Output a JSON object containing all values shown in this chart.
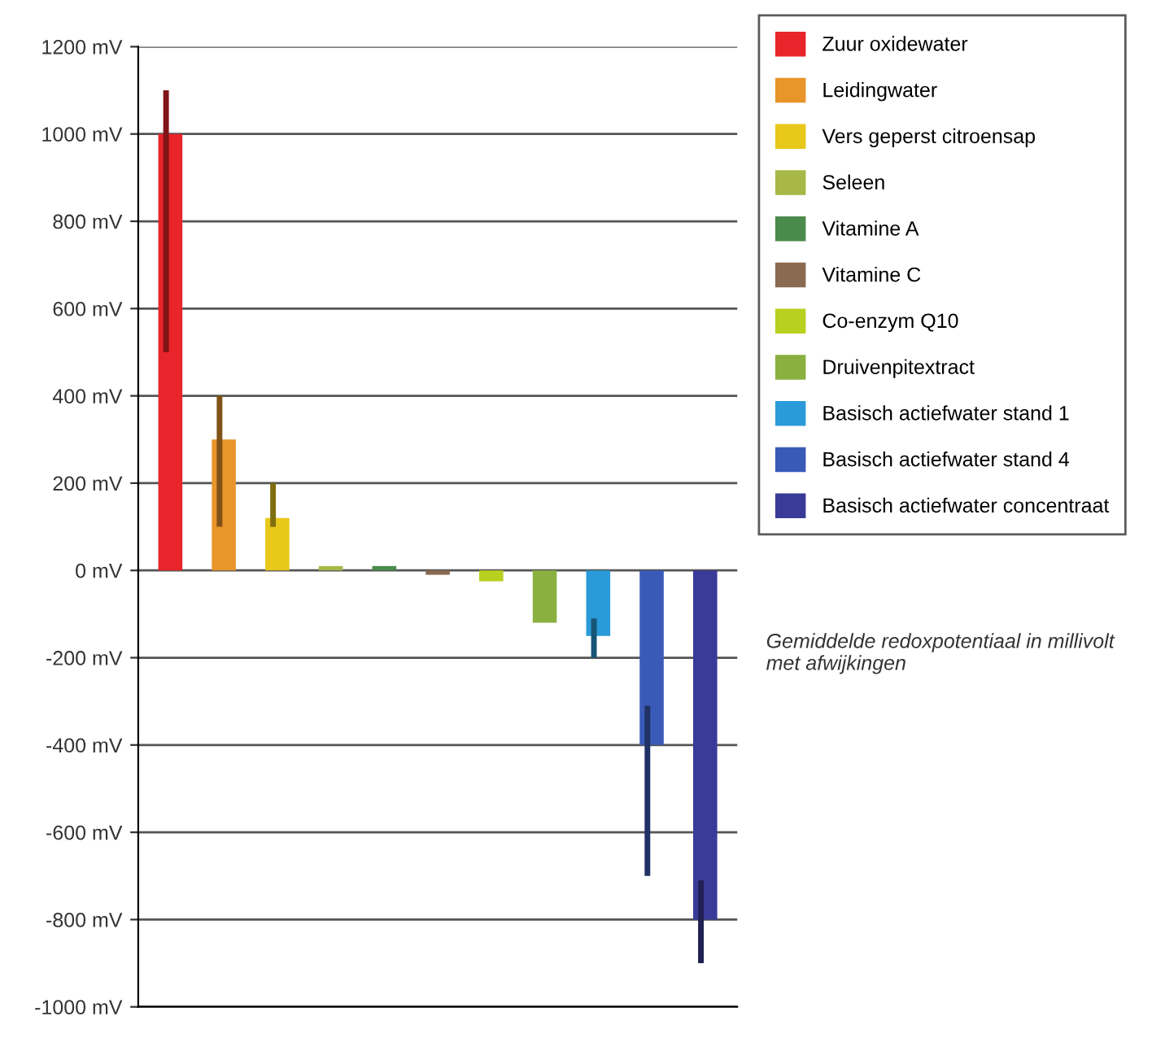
{
  "chart_data": {
    "type": "bar",
    "categories": [
      null,
      null,
      null,
      null,
      null,
      null,
      null,
      null,
      null,
      null,
      null
    ],
    "series": [
      {
        "name": "Zuur oxidewater",
        "color": "#e8252a",
        "values": [
          1000,
          null,
          null,
          null,
          null,
          null,
          null,
          null,
          null,
          null,
          null
        ],
        "errors": [
          [
            500,
            1100
          ],
          null,
          null,
          null,
          null,
          null,
          null,
          null,
          null,
          null,
          null
        ]
      },
      {
        "name": "Leidingwater",
        "color": "#e8952a",
        "values": [
          null,
          300,
          null,
          null,
          null,
          null,
          null,
          null,
          null,
          null,
          null
        ],
        "errors": [
          null,
          [
            100,
            400
          ],
          null,
          null,
          null,
          null,
          null,
          null,
          null,
          null,
          null
        ]
      },
      {
        "name": "Vers geperst citroensap",
        "color": "#e8c81a",
        "values": [
          null,
          null,
          120,
          null,
          null,
          null,
          null,
          null,
          null,
          null,
          null
        ],
        "errors": [
          null,
          null,
          [
            100,
            200
          ],
          null,
          null,
          null,
          null,
          null,
          null,
          null,
          null
        ]
      },
      {
        "name": "Seleen",
        "color": "#a8b848",
        "values": [
          null,
          null,
          null,
          10,
          null,
          null,
          null,
          null,
          null,
          null,
          null
        ]
      },
      {
        "name": "Vitamine A",
        "color": "#4a8a4a",
        "values": [
          null,
          null,
          null,
          null,
          10,
          null,
          null,
          null,
          null,
          null,
          null
        ]
      },
      {
        "name": "Vitamine C",
        "color": "#8a6a50",
        "values": [
          null,
          null,
          null,
          null,
          null,
          -10,
          null,
          null,
          null,
          null,
          null
        ]
      },
      {
        "name": "Co-enzym Q10",
        "color": "#b8d020",
        "values": [
          null,
          null,
          null,
          null,
          null,
          null,
          -25,
          null,
          null,
          null,
          null
        ]
      },
      {
        "name": "Druivenpitextract",
        "color": "#8ab040",
        "values": [
          null,
          null,
          null,
          null,
          null,
          null,
          null,
          -120,
          null,
          null,
          null
        ]
      },
      {
        "name": "Basisch actiefwater stand 1",
        "color": "#2a9ad8",
        "values": [
          null,
          null,
          null,
          null,
          null,
          null,
          null,
          null,
          -150,
          null,
          null
        ],
        "errors": [
          null,
          null,
          null,
          null,
          null,
          null,
          null,
          null,
          [
            -200,
            -110
          ],
          null,
          null
        ]
      },
      {
        "name": "Basisch actiefwater stand 4",
        "color": "#3a5ab8",
        "values": [
          null,
          null,
          null,
          null,
          null,
          null,
          null,
          null,
          null,
          -400,
          null
        ],
        "errors": [
          null,
          null,
          null,
          null,
          null,
          null,
          null,
          null,
          null,
          [
            -700,
            -310
          ],
          null
        ]
      },
      {
        "name": "Basisch actiefwater concentraat",
        "color": "#3a3a98",
        "values": [
          null,
          null,
          null,
          null,
          null,
          null,
          null,
          null,
          null,
          null,
          -800
        ],
        "errors": [
          null,
          null,
          null,
          null,
          null,
          null,
          null,
          null,
          null,
          null,
          [
            -900,
            -710
          ]
        ]
      }
    ],
    "ylim": [
      -1000,
      1200
    ],
    "yticks": [
      {
        "value": -1000,
        "label": "-1000 mV"
      },
      {
        "value": -800,
        "label": "-800 mV"
      },
      {
        "value": -600,
        "label": "-600 mV"
      },
      {
        "value": -400,
        "label": "-400 mV"
      },
      {
        "value": -200,
        "label": "-200 mV"
      },
      {
        "value": 0,
        "label": "0 mV"
      },
      {
        "value": 200,
        "label": "200 mV"
      },
      {
        "value": 400,
        "label": "400 mV"
      },
      {
        "value": 600,
        "label": "600 mV"
      },
      {
        "value": 800,
        "label": "800 mV"
      },
      {
        "value": 1000,
        "label": "1000 mV"
      },
      {
        "value": 1200,
        "label": "1200 mV"
      }
    ],
    "tick_labels": "y",
    "grid": "y",
    "legend": "top right",
    "annotations": [
      "Gemiddelde redoxpotentiaal in millivolt met afwijkingen"
    ]
  }
}
